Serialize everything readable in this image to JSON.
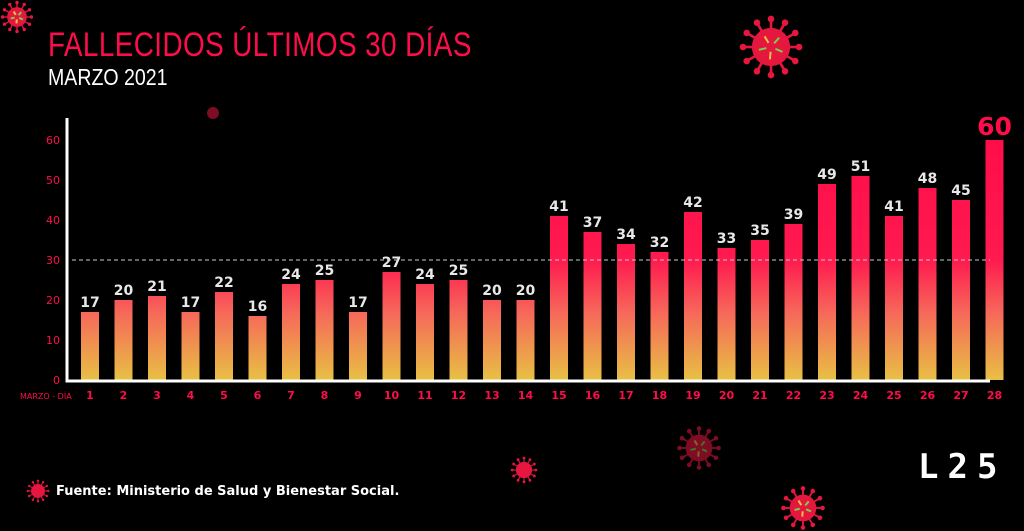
{
  "title": "FALLECIDOS ÚLTIMOS 30 DÍAS",
  "subtitle": "MARZO 2021",
  "source": "Fuente: Ministerio de Salud y Bienestar Social.",
  "brand": "L25",
  "icons": {
    "virus": "virus-icon"
  },
  "colors": {
    "background": "#000000",
    "accent": "#ff0d4a",
    "gradient_bottom": "#e8c044",
    "axis": "#ffffff",
    "reference_line": "#cccccc"
  },
  "chart_data": {
    "type": "bar",
    "xlabel": "MARZO - DÍA",
    "ylabel": "",
    "ylim": [
      0,
      65
    ],
    "yticks": [
      0,
      10,
      20,
      30,
      40,
      50,
      60
    ],
    "reference_line": 30,
    "categories": [
      "1",
      "2",
      "3",
      "4",
      "5",
      "6",
      "7",
      "8",
      "9",
      "10",
      "11",
      "12",
      "13",
      "14",
      "15",
      "16",
      "17",
      "18",
      "19",
      "20",
      "21",
      "22",
      "23",
      "24",
      "25",
      "26",
      "27",
      "28"
    ],
    "values": [
      17,
      20,
      21,
      17,
      22,
      16,
      24,
      25,
      17,
      27,
      24,
      25,
      20,
      20,
      41,
      37,
      34,
      32,
      42,
      33,
      35,
      39,
      49,
      51,
      41,
      48,
      45,
      60
    ],
    "highlight_last": true,
    "grid": false
  }
}
